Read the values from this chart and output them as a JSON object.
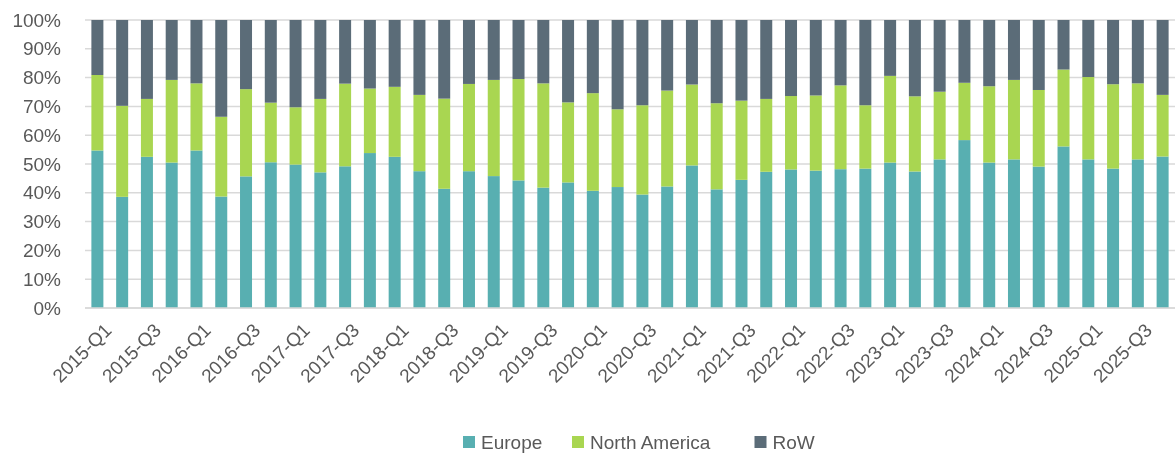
{
  "chart_data": {
    "type": "bar",
    "stacked": true,
    "categories": [
      "2015-Q1",
      null,
      "2015-Q3",
      null,
      "2016-Q1",
      null,
      "2016-Q3",
      null,
      "2017-Q1",
      null,
      "2017-Q3",
      null,
      "2018-Q1",
      null,
      "2018-Q3",
      null,
      "2019-Q1",
      null,
      "2019-Q3",
      null,
      "2020-Q1",
      null,
      "2020-Q3",
      null,
      "2021-Q1",
      null,
      "2021-Q3",
      null,
      "2022-Q1",
      null,
      "2022-Q3",
      null,
      "2023-Q1",
      null,
      "2023-Q3",
      null,
      "2024-Q1",
      null,
      "2024-Q3",
      null,
      "2025-Q1",
      null,
      "2025-Q3",
      null
    ],
    "series": [
      {
        "name": "Europe",
        "color": "#58afb1",
        "values": [
          54.7,
          38.6,
          52.5,
          50.5,
          54.7,
          38.7,
          45.7,
          50.6,
          49.8,
          47.1,
          49.2,
          53.8,
          52.5,
          47.5,
          41.4,
          47.5,
          45.8,
          44.3,
          41.8,
          43.6,
          40.7,
          42.0,
          39.4,
          42.2,
          49.5,
          41.2,
          44.5,
          47.3,
          48.1,
          47.7,
          48.2,
          48.4,
          50.5,
          47.4,
          51.6,
          58.3,
          50.5,
          51.6,
          49.1,
          56.1,
          51.6,
          48.4,
          51.6,
          52.6
        ]
      },
      {
        "name": "North America",
        "color": "#a9d651",
        "values": [
          26.2,
          31.6,
          20.1,
          28.7,
          23.3,
          27.7,
          30.3,
          20.7,
          19.9,
          25.5,
          28.7,
          22.4,
          24.3,
          26.5,
          31.3,
          30.3,
          33.4,
          35.2,
          36.2,
          27.8,
          33.9,
          27.0,
          31.0,
          33.3,
          28.1,
          29.9,
          27.5,
          25.3,
          25.5,
          26.1,
          29.1,
          22.0,
          30.1,
          26.1,
          23.5,
          19.9,
          26.5,
          27.6,
          26.6,
          26.7,
          28.6,
          29.3,
          26.4,
          21.4
        ]
      },
      {
        "name": "RoW",
        "color": "#5b6c78",
        "values": [
          19.1,
          29.8,
          27.4,
          20.8,
          22.0,
          33.6,
          24.0,
          28.7,
          30.3,
          27.4,
          22.1,
          23.8,
          23.2,
          26.0,
          27.3,
          22.2,
          20.8,
          20.5,
          22.0,
          28.6,
          25.4,
          31.0,
          29.6,
          24.5,
          22.4,
          28.9,
          28.0,
          27.4,
          26.4,
          26.2,
          22.7,
          29.6,
          19.4,
          26.5,
          24.9,
          21.8,
          23.0,
          20.8,
          24.3,
          17.2,
          19.8,
          22.3,
          22.0,
          26.0
        ]
      }
    ],
    "ylim": [
      0,
      100
    ],
    "yticks": [
      {
        "value": 0,
        "label": "0%"
      },
      {
        "value": 10,
        "label": "10%"
      },
      {
        "value": 20,
        "label": "20%"
      },
      {
        "value": 30,
        "label": "30%"
      },
      {
        "value": 40,
        "label": "40%"
      },
      {
        "value": 50,
        "label": "50%"
      },
      {
        "value": 60,
        "label": "60%"
      },
      {
        "value": 70,
        "label": "70%"
      },
      {
        "value": 80,
        "label": "80%"
      },
      {
        "value": 90,
        "label": "90%"
      },
      {
        "value": 100,
        "label": "100%"
      }
    ],
    "grid": "y",
    "legend": "bottom"
  }
}
